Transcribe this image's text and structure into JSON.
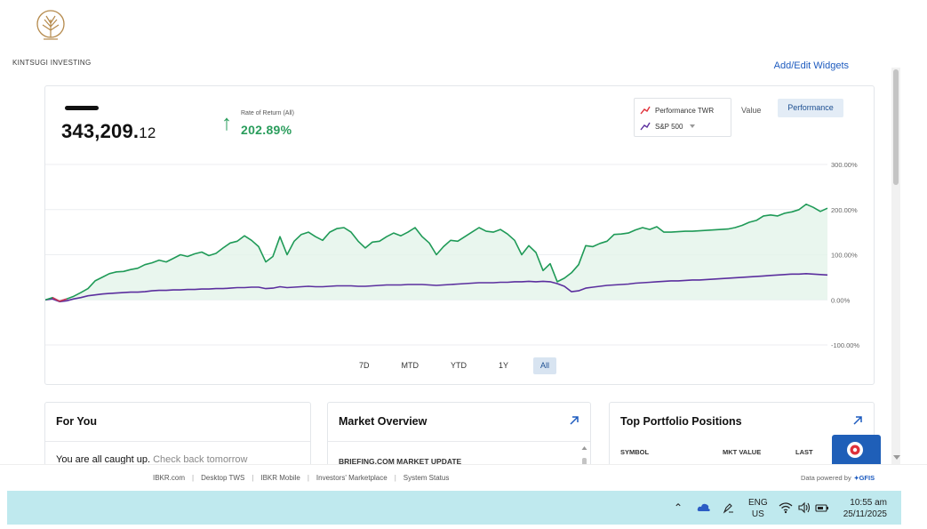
{
  "brand": {
    "name": "KINTSUGI INVESTING",
    "icon": "tree-logo-icon"
  },
  "top_link": {
    "label": "Add/Edit Widgets"
  },
  "portfolio": {
    "balance_main": "343,209.",
    "balance_cents": "12",
    "rate_of_return_label": "Rate of Return (All)",
    "rate_of_return_value": "202.89%",
    "rate_direction": "up"
  },
  "legend": {
    "items": [
      {
        "label": "Performance TWR",
        "color": "#e0313a"
      },
      {
        "label": "S&P 500",
        "color": "#5b2f9e"
      }
    ]
  },
  "view_toggle": {
    "value_label": "Value",
    "performance_label": "Performance",
    "selected": "Performance"
  },
  "ranges": {
    "items": [
      "7D",
      "MTD",
      "YTD",
      "1Y",
      "All"
    ],
    "selected": "All"
  },
  "colors": {
    "portfolio_line": "#1f9a57",
    "benchmark_line": "#5b2f9e",
    "negative_line": "#d0315a",
    "accent": "#1d5bbf",
    "taskbar": "#bfe9ee"
  },
  "chart_data": {
    "type": "line",
    "ylim": [
      -100,
      300
    ],
    "y_ticks": [
      "300.00%",
      "200.00%",
      "100.00%",
      "0.00%",
      "-100.00%"
    ],
    "grid": true,
    "series": [
      {
        "name": "Performance TWR",
        "values": [
          0,
          5,
          -3,
          2,
          8,
          16,
          25,
          42,
          50,
          58,
          62,
          63,
          67,
          70,
          78,
          82,
          88,
          84,
          92,
          100,
          96,
          102,
          106,
          98,
          103,
          115,
          126,
          130,
          142,
          132,
          118,
          84,
          96,
          140,
          100,
          130,
          145,
          150,
          140,
          132,
          150,
          158,
          160,
          150,
          130,
          115,
          128,
          130,
          140,
          148,
          142,
          150,
          160,
          140,
          126,
          100,
          118,
          132,
          130,
          140,
          150,
          160,
          152,
          150,
          156,
          146,
          132,
          100,
          120,
          105,
          65,
          80,
          40,
          48,
          60,
          78,
          120,
          118,
          125,
          130,
          145,
          146,
          148,
          155,
          160,
          156,
          162,
          150,
          150,
          151,
          152,
          152,
          153,
          154,
          155,
          156,
          157,
          160,
          165,
          172,
          176,
          186,
          188,
          186,
          192,
          195,
          200,
          212,
          205,
          196,
          203
        ]
      },
      {
        "name": "S&P 500",
        "values": [
          0,
          2,
          -4,
          -2,
          2,
          5,
          9,
          11,
          13,
          14,
          15,
          16,
          17,
          17,
          18,
          20,
          21,
          21,
          22,
          22,
          23,
          23,
          24,
          24,
          25,
          25,
          26,
          27,
          27,
          28,
          28,
          25,
          26,
          29,
          27,
          28,
          29,
          30,
          29,
          29,
          30,
          31,
          31,
          31,
          30,
          30,
          31,
          32,
          33,
          33,
          33,
          34,
          34,
          34,
          33,
          32,
          33,
          34,
          35,
          36,
          37,
          38,
          38,
          38,
          39,
          39,
          40,
          40,
          41,
          40,
          41,
          40,
          36,
          30,
          18,
          20,
          26,
          28,
          30,
          32,
          33,
          34,
          35,
          37,
          38,
          39,
          40,
          41,
          42,
          42,
          43,
          44,
          44,
          45,
          46,
          47,
          48,
          49,
          50,
          51,
          52,
          53,
          54,
          55,
          56,
          57,
          57,
          58,
          57,
          56,
          55
        ]
      }
    ]
  },
  "widgets": {
    "for_you": {
      "title": "For You",
      "message": "You are all caught up.",
      "message_muted": "Check back tomorrow"
    },
    "market_overview": {
      "title": "Market Overview",
      "subtitle": "BRIEFING.COM MARKET UPDATE"
    },
    "top_positions": {
      "title": "Top Portfolio Positions",
      "columns": [
        "SYMBOL",
        "MKT VALUE",
        "LAST"
      ]
    }
  },
  "footer": {
    "links": [
      "IBKR.com",
      "Desktop TWS",
      "IBKR Mobile",
      "Investors' Marketplace",
      "System Status"
    ],
    "powered_by_label": "Data powered by",
    "powered_by_brand": "GFIS"
  },
  "taskbar": {
    "lang_line1": "ENG",
    "lang_line2": "US",
    "time": "10:55 am",
    "date": "25/11/2025"
  }
}
